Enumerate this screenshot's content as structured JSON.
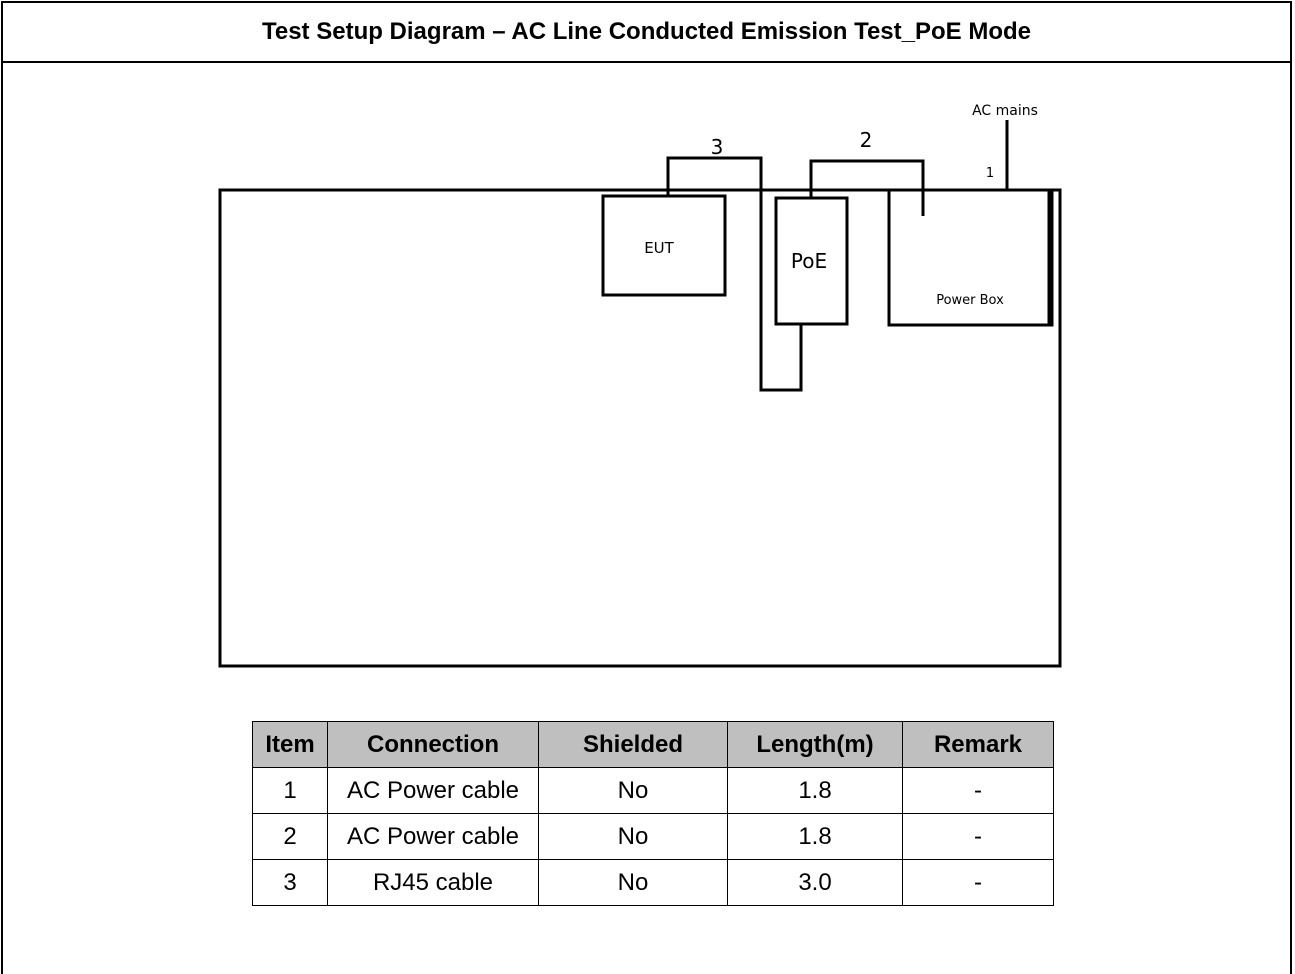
{
  "header": {
    "title": "Test Setup Diagram – AC Line Conducted Emission Test_PoE Mode"
  },
  "diagram": {
    "labels": {
      "ac_mains": "AC mains",
      "cable1": "1",
      "cable2": "2",
      "cable3": "3",
      "eut": "EUT",
      "poe": "PoE",
      "power_box": "Power Box"
    }
  },
  "table": {
    "columns": [
      "Item",
      "Connection",
      "Shielded",
      "Length(m)",
      "Remark"
    ],
    "rows": [
      [
        "1",
        "AC Power cable",
        "No",
        "1.8",
        "-"
      ],
      [
        "2",
        "AC Power cable",
        "No",
        "1.8",
        "-"
      ],
      [
        "3",
        "RJ45 cable",
        "No",
        "3.0",
        "-"
      ]
    ]
  }
}
